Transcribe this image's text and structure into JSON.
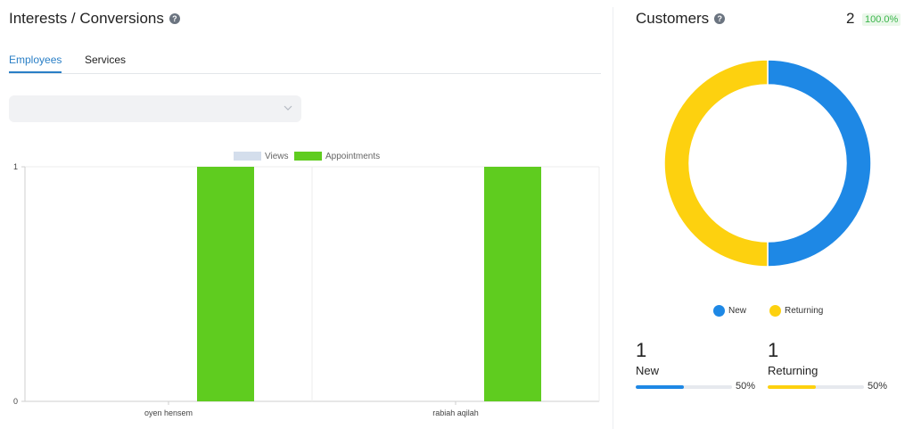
{
  "interests": {
    "title": "Interests / Conversions",
    "tabs": [
      {
        "label": "Employees",
        "active": true
      },
      {
        "label": "Services",
        "active": false
      }
    ],
    "select_value": ""
  },
  "chart_data": {
    "type": "bar",
    "categories": [
      "oyen hensem",
      "rabiah aqilah"
    ],
    "series": [
      {
        "name": "Views",
        "values": [
          0,
          0
        ],
        "color": "#d4deec"
      },
      {
        "name": "Appointments",
        "values": [
          1,
          1
        ],
        "color": "#5fcc1f"
      }
    ],
    "yticks": [
      "0",
      "1"
    ],
    "ylim": [
      0,
      1
    ],
    "legend_position": "top-center",
    "grid": true
  },
  "customers": {
    "title": "Customers",
    "total": "2",
    "percent": "100.0%",
    "segments": [
      {
        "name": "New",
        "value": 1,
        "color": "#1e88e5"
      },
      {
        "name": "Returning",
        "value": 1,
        "color": "#fdd10f"
      }
    ],
    "legend": [
      {
        "label": "New",
        "color": "#1e88e5"
      },
      {
        "label": "Returning",
        "color": "#fdd10f"
      }
    ],
    "stats": [
      {
        "count": "1",
        "label": "New",
        "percent_text": "50%",
        "fraction": 0.5,
        "color": "#1e88e5"
      },
      {
        "count": "1",
        "label": "Returning",
        "percent_text": "50%",
        "fraction": 0.5,
        "color": "#fdd10f"
      }
    ]
  }
}
